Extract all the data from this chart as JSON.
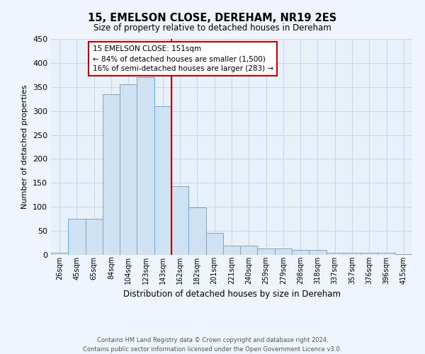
{
  "title": "15, EMELSON CLOSE, DEREHAM, NR19 2ES",
  "subtitle": "Size of property relative to detached houses in Dereham",
  "xlabel": "Distribution of detached houses by size in Dereham",
  "ylabel": "Number of detached properties",
  "bar_labels": [
    "26sqm",
    "45sqm",
    "65sqm",
    "84sqm",
    "104sqm",
    "123sqm",
    "143sqm",
    "162sqm",
    "182sqm",
    "201sqm",
    "221sqm",
    "240sqm",
    "259sqm",
    "279sqm",
    "298sqm",
    "318sqm",
    "337sqm",
    "357sqm",
    "376sqm",
    "396sqm",
    "415sqm"
  ],
  "bar_heights": [
    5,
    75,
    75,
    335,
    355,
    370,
    310,
    143,
    99,
    46,
    19,
    19,
    14,
    14,
    10,
    10,
    5,
    5,
    5,
    5,
    2
  ],
  "bar_color": "#cfe2f3",
  "bar_edge_color": "#6fa8dc",
  "grid_color": "#c5d5e8",
  "bg_color": "#e8f0fa",
  "fig_color": "#f0f4fd",
  "vline_color": "#cc0000",
  "annotation_title": "15 EMELSON CLOSE: 151sqm",
  "annotation_line1": "← 84% of detached houses are smaller (1,500)",
  "annotation_line2": "16% of semi-detached houses are larger (283) →",
  "annotation_box_color": "#ffffff",
  "annotation_box_edge": "#cc0000",
  "ylim": [
    0,
    450
  ],
  "yticks": [
    0,
    50,
    100,
    150,
    200,
    250,
    300,
    350,
    400,
    450
  ],
  "footer_line1": "Contains HM Land Registry data © Crown copyright and database right 2024.",
  "footer_line2": "Contains public sector information licensed under the Open Government Licence v3.0."
}
